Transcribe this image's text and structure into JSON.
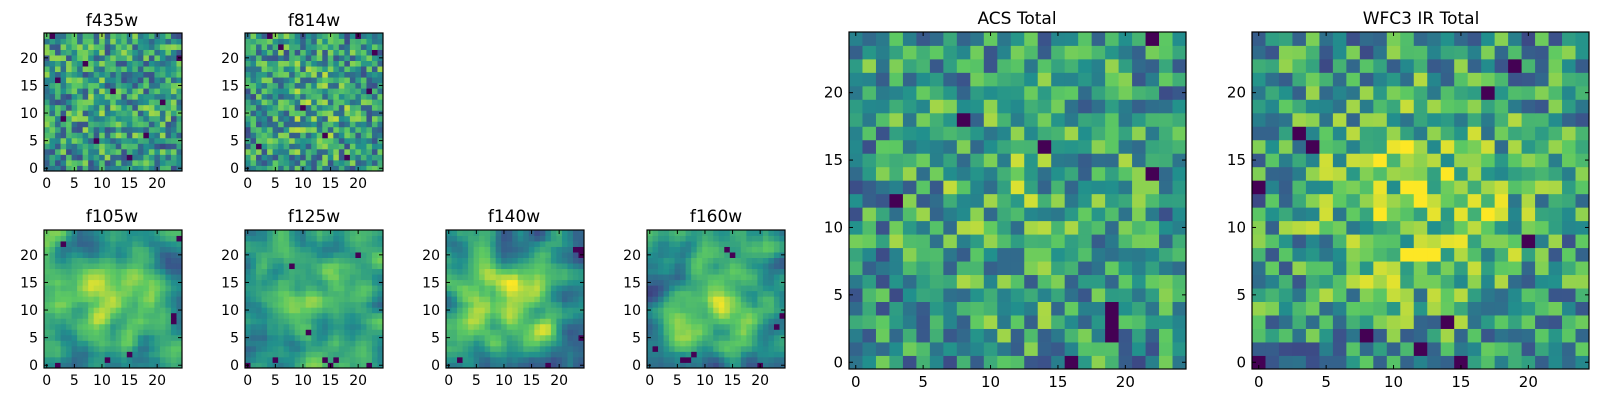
{
  "figure": {
    "colormap": "viridis",
    "colormap_stops": [
      "#440154",
      "#3b528b",
      "#21908d",
      "#5dc962",
      "#fde725"
    ],
    "background": "#ffffff",
    "frame_color": "#000000"
  },
  "chart_data": [
    {
      "id": "f435w",
      "type": "heatmap",
      "title": "f435w",
      "grid_size": [
        25,
        25
      ],
      "xlim": [
        -0.5,
        24.5
      ],
      "ylim": [
        -0.5,
        24.5
      ],
      "xticks": [
        0,
        5,
        10,
        15,
        20
      ],
      "yticks": [
        0,
        5,
        10,
        15,
        20
      ],
      "value_range": [
        0,
        1
      ],
      "style": "noise",
      "seed": 11,
      "center_bias": 0.05,
      "dark_pixels": [
        [
          1,
          24
        ],
        [
          3,
          9
        ],
        [
          7,
          19
        ],
        [
          9,
          5
        ],
        [
          12,
          14
        ],
        [
          15,
          2
        ],
        [
          18,
          6
        ],
        [
          21,
          12
        ],
        [
          24,
          20
        ],
        [
          2,
          16
        ]
      ]
    },
    {
      "id": "f814w",
      "type": "heatmap",
      "title": "f814w",
      "grid_size": [
        25,
        25
      ],
      "xlim": [
        -0.5,
        24.5
      ],
      "ylim": [
        -0.5,
        24.5
      ],
      "xticks": [
        0,
        5,
        10,
        15,
        20
      ],
      "yticks": [
        0,
        5,
        10,
        15,
        20
      ],
      "value_range": [
        0,
        1
      ],
      "style": "noise",
      "seed": 23,
      "center_bias": 0.12,
      "dark_pixels": [
        [
          4,
          24
        ],
        [
          6,
          22
        ],
        [
          20,
          24
        ],
        [
          23,
          21
        ],
        [
          18,
          2
        ],
        [
          2,
          4
        ],
        [
          10,
          11
        ],
        [
          14,
          6
        ],
        [
          22,
          14
        ]
      ]
    },
    {
      "id": "f105w",
      "type": "heatmap",
      "title": "f105w",
      "grid_size": [
        25,
        25
      ],
      "xlim": [
        -0.5,
        24.5
      ],
      "ylim": [
        -0.5,
        24.5
      ],
      "xticks": [
        0,
        5,
        10,
        15,
        20
      ],
      "yticks": [
        0,
        5,
        10,
        15,
        20
      ],
      "value_range": [
        0,
        1
      ],
      "style": "smooth",
      "seed": 37,
      "center_bias": 0.35,
      "dark_pixels": [
        [
          23,
          9
        ],
        [
          23,
          8
        ],
        [
          24,
          23
        ],
        [
          3,
          22
        ],
        [
          15,
          2
        ],
        [
          2,
          0
        ],
        [
          11,
          1
        ]
      ]
    },
    {
      "id": "f125w",
      "type": "heatmap",
      "title": "f125w",
      "grid_size": [
        25,
        25
      ],
      "xlim": [
        -0.5,
        24.5
      ],
      "ylim": [
        -0.5,
        24.5
      ],
      "xticks": [
        0,
        5,
        10,
        15,
        20
      ],
      "yticks": [
        0,
        5,
        10,
        15,
        20
      ],
      "value_range": [
        0,
        1
      ],
      "style": "smooth",
      "seed": 41,
      "center_bias": 0.25,
      "dark_pixels": [
        [
          0,
          0
        ],
        [
          5,
          1
        ],
        [
          14,
          1
        ],
        [
          15,
          0
        ],
        [
          16,
          1
        ],
        [
          22,
          0
        ],
        [
          8,
          18
        ],
        [
          20,
          20
        ],
        [
          11,
          6
        ]
      ]
    },
    {
      "id": "f140w",
      "type": "heatmap",
      "title": "f140w",
      "grid_size": [
        25,
        25
      ],
      "xlim": [
        -0.5,
        24.5
      ],
      "ylim": [
        -0.5,
        24.5
      ],
      "xticks": [
        0,
        5,
        10,
        15,
        20
      ],
      "yticks": [
        0,
        5,
        10,
        15,
        20
      ],
      "value_range": [
        0,
        1
      ],
      "style": "smooth",
      "seed": 53,
      "center_bias": 0.35,
      "dark_pixels": [
        [
          24,
          20
        ],
        [
          24,
          21
        ],
        [
          23,
          21
        ],
        [
          24,
          5
        ],
        [
          2,
          1
        ],
        [
          18,
          0
        ]
      ]
    },
    {
      "id": "f160w",
      "type": "heatmap",
      "title": "f160w",
      "grid_size": [
        25,
        25
      ],
      "xlim": [
        -0.5,
        24.5
      ],
      "ylim": [
        -0.5,
        24.5
      ],
      "xticks": [
        0,
        5,
        10,
        15,
        20
      ],
      "yticks": [
        0,
        5,
        10,
        15,
        20
      ],
      "value_range": [
        0,
        1
      ],
      "style": "smooth",
      "seed": 67,
      "center_bias": 0.3,
      "dark_pixels": [
        [
          14,
          21
        ],
        [
          15,
          20
        ],
        [
          6,
          1
        ],
        [
          7,
          1
        ],
        [
          8,
          2
        ],
        [
          23,
          7
        ],
        [
          24,
          9
        ],
        [
          1,
          3
        ],
        [
          20,
          0
        ]
      ]
    },
    {
      "id": "acs-total",
      "type": "heatmap",
      "title": "ACS Total",
      "grid_size": [
        25,
        25
      ],
      "xlim": [
        -0.5,
        24.5
      ],
      "ylim": [
        -0.5,
        24.5
      ],
      "xticks": [
        0,
        5,
        10,
        15,
        20
      ],
      "yticks": [
        0,
        5,
        10,
        15,
        20
      ],
      "value_range": [
        0,
        1
      ],
      "style": "noise",
      "seed": 79,
      "center_bias": 0.12,
      "dark_pixels": [
        [
          22,
          24
        ],
        [
          8,
          18
        ],
        [
          14,
          16
        ],
        [
          3,
          12
        ],
        [
          22,
          14
        ],
        [
          19,
          4
        ],
        [
          19,
          3
        ],
        [
          19,
          2
        ],
        [
          16,
          0
        ]
      ]
    },
    {
      "id": "wfc3-ir-total",
      "type": "heatmap",
      "title": "WFC3 IR Total",
      "grid_size": [
        25,
        25
      ],
      "xlim": [
        -0.5,
        24.5
      ],
      "ylim": [
        -0.5,
        24.5
      ],
      "xticks": [
        0,
        5,
        10,
        15,
        20
      ],
      "yticks": [
        0,
        5,
        10,
        15,
        20
      ],
      "value_range": [
        0,
        1
      ],
      "style": "noise",
      "seed": 97,
      "center_bias": 0.3,
      "dark_pixels": [
        [
          19,
          22
        ],
        [
          17,
          20
        ],
        [
          3,
          17
        ],
        [
          4,
          16
        ],
        [
          0,
          13
        ],
        [
          20,
          9
        ],
        [
          14,
          3
        ],
        [
          8,
          2
        ],
        [
          12,
          1
        ],
        [
          15,
          0
        ],
        [
          0,
          0
        ]
      ]
    }
  ]
}
